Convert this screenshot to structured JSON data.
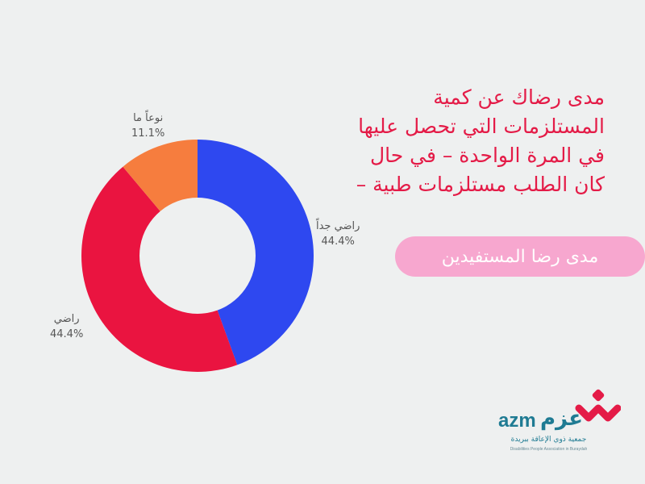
{
  "chart_data": {
    "type": "pie",
    "donut": true,
    "categories": [
      "راضي جداً",
      "راضي",
      "نوعاً ما"
    ],
    "values": [
      44.4,
      44.4,
      11.1
    ],
    "value_labels": [
      "44.4%",
      "44.4%",
      "11.1%"
    ],
    "colors": [
      "#2e48f0",
      "#ea1440",
      "#f67d3e"
    ],
    "title": "مدى رضاك عن كمية المستلزمات التي تحصل عليها في المرة الواحدة – في حال كان الطلب مستلزمات طبية –"
  },
  "title_lines": [
    "مدى رضاك عن كمية",
    "المستلزمات التي تحصل عليها",
    "في المرة الواحدة – في حال",
    "كان الطلب مستلزمات طبية   –"
  ],
  "banner": {
    "label": "مدى رضا المستفيدين",
    "color": "#f7a7cf"
  },
  "logo": {
    "latin": "azm",
    "arabic": "عزم",
    "arabic_sub": "جمعية ذوي الإعاقة ببريدة",
    "english_sub": "Disabilities People Association in Buraydah",
    "colors": {
      "primary": "#1f7b93",
      "mark": "#e41b47"
    }
  },
  "colors": {
    "background": "#eef0f0",
    "title": "#e41b47"
  }
}
